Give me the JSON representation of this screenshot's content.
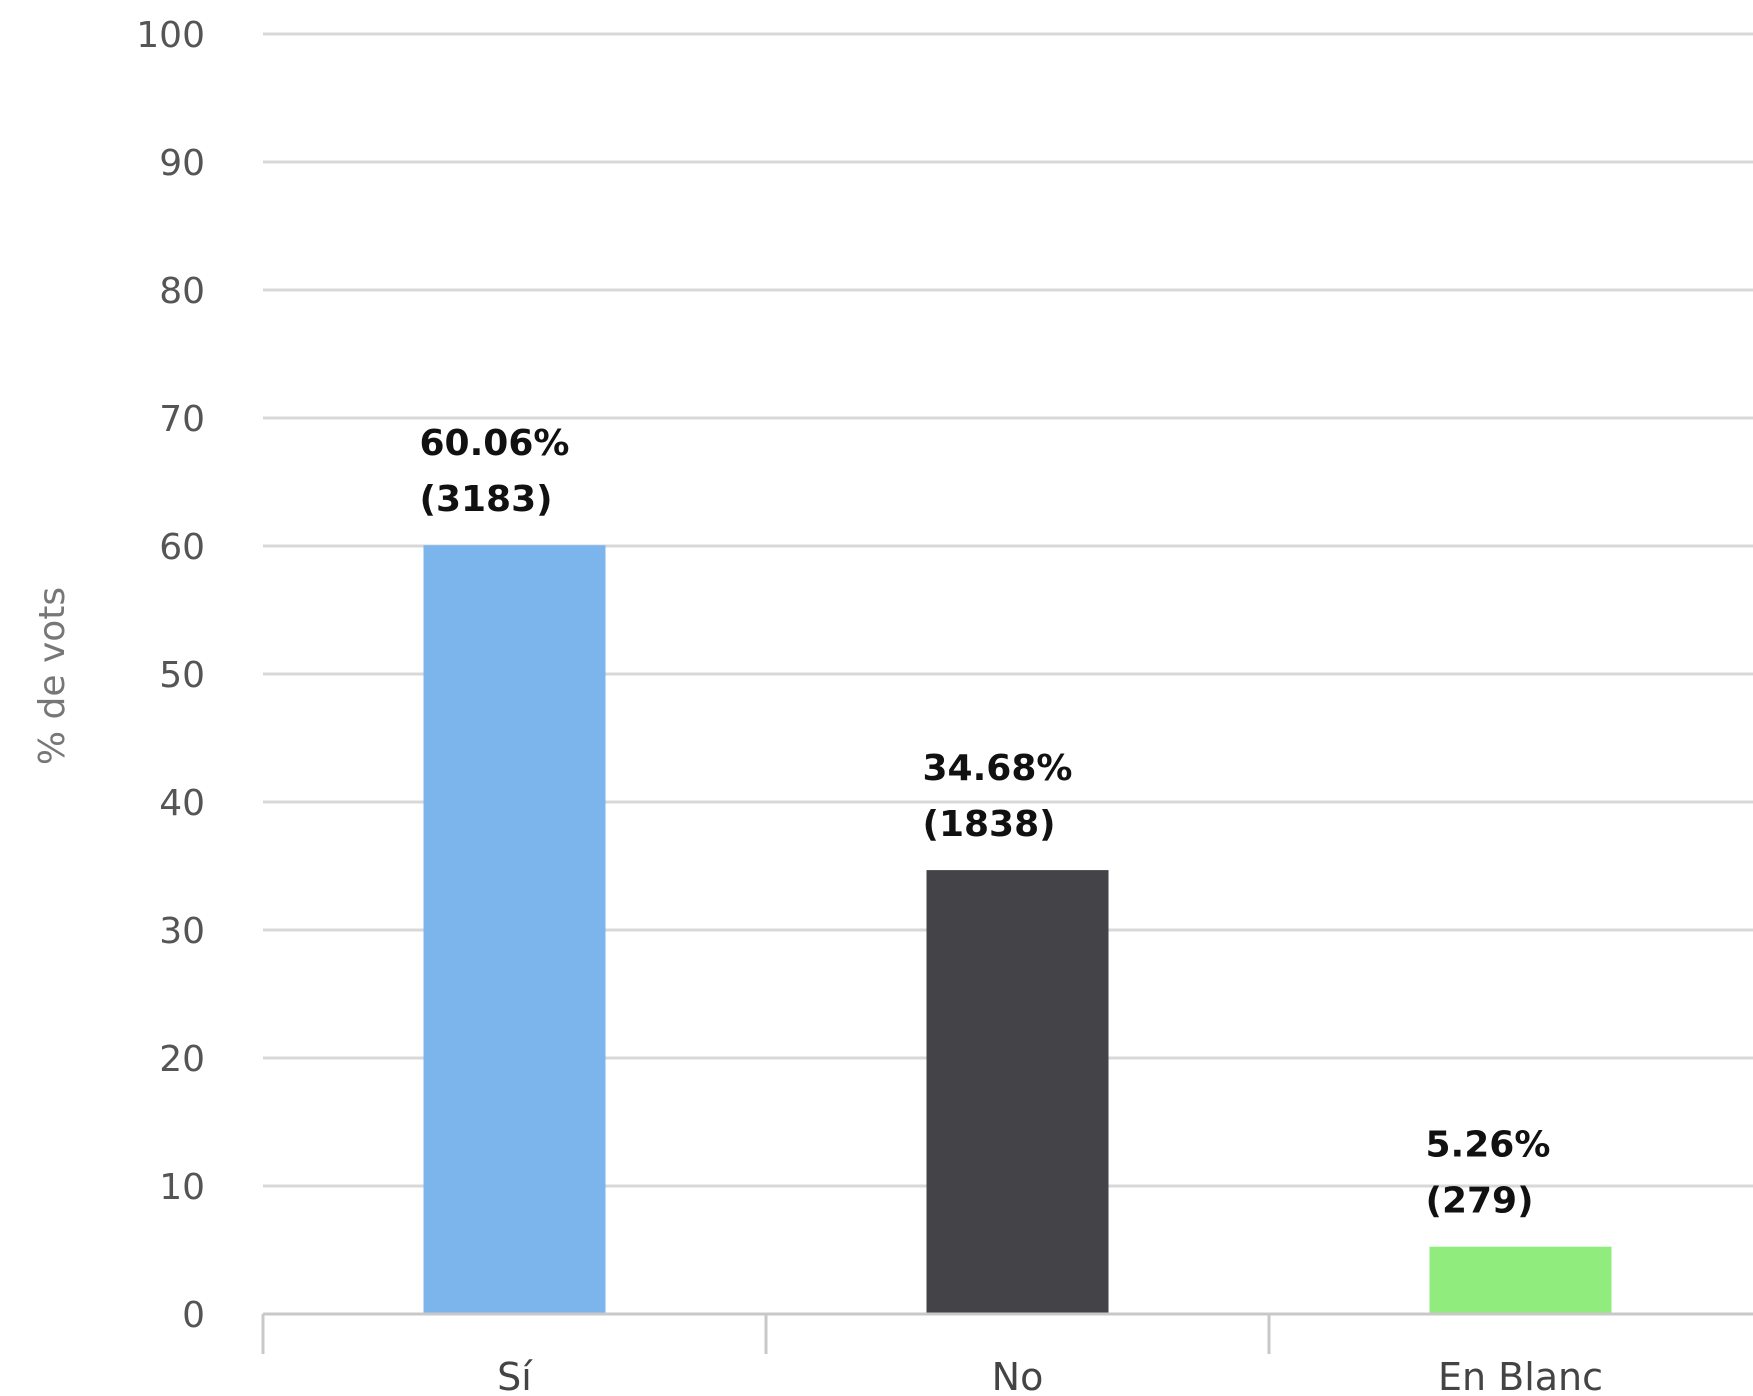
{
  "chart_data": {
    "type": "bar",
    "categories": [
      "Sí",
      "No",
      "En Blanc"
    ],
    "values": [
      60.06,
      34.68,
      5.26
    ],
    "data_labels": [
      {
        "percent": "60.06%",
        "count": "(3183)"
      },
      {
        "percent": "34.68%",
        "count": "(1838)"
      },
      {
        "percent": "5.26%",
        "count": "(279)"
      }
    ],
    "colors": [
      "#7cb5ec",
      "#434348",
      "#90ed7d"
    ],
    "ylabel": "% de vots",
    "xlabel": "",
    "ylim": [
      0,
      100
    ],
    "yticks": [
      "0",
      "10",
      "20",
      "30",
      "40",
      "50",
      "60",
      "70",
      "80",
      "90",
      "100"
    ],
    "grid": true,
    "legend": "none"
  }
}
